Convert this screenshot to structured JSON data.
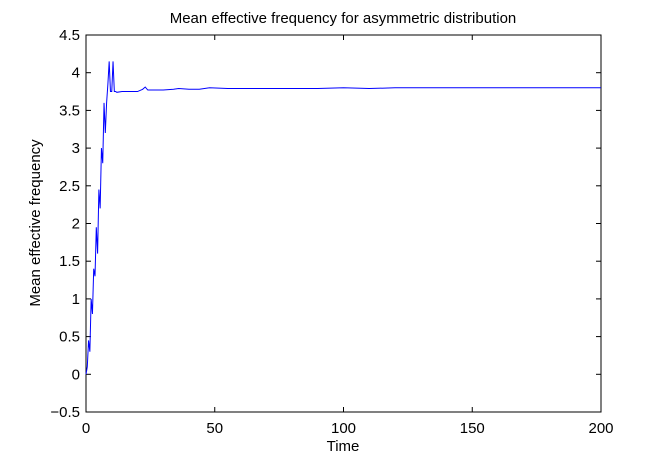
{
  "chart_data": {
    "type": "line",
    "title": "Mean effective frequency for asymmetric distribution",
    "xlabel": "Time",
    "ylabel": "Mean effective frequency",
    "xlim": [
      0,
      200
    ],
    "ylim": [
      -0.5,
      4.5
    ],
    "xticks": [
      0,
      50,
      100,
      150,
      200
    ],
    "yticks": [
      -0.5,
      0,
      0.5,
      1,
      1.5,
      2,
      2.5,
      3,
      3.5,
      4,
      4.5
    ],
    "xtick_labels": [
      "0",
      "50",
      "100",
      "150",
      "200"
    ],
    "ytick_labels": [
      "−0.5",
      "0",
      "0.5",
      "1",
      "1.5",
      "2",
      "2.5",
      "3",
      "3.5",
      "4",
      "4.5"
    ],
    "grid": false,
    "line_color": "#0000ff",
    "series": [
      {
        "x": [
          0,
          0.5,
          1,
          1.5,
          2,
          2.5,
          3,
          3.5,
          4,
          4.5,
          5,
          5.5,
          6,
          6.5,
          7,
          7.5,
          8,
          8.5,
          9,
          9.5,
          10,
          10.5,
          11,
          11.5,
          12,
          14,
          16,
          18,
          20,
          22,
          23,
          24,
          26,
          30,
          34,
          36,
          40,
          44,
          48,
          55,
          60,
          70,
          80,
          90,
          100,
          110,
          120,
          130,
          140,
          150,
          160,
          170,
          180,
          190,
          200
        ],
        "y": [
          0,
          0.1,
          0.45,
          0.3,
          1.0,
          0.8,
          1.4,
          1.3,
          1.95,
          1.6,
          2.45,
          2.2,
          3.0,
          2.8,
          3.6,
          3.2,
          3.6,
          3.85,
          4.15,
          3.75,
          3.75,
          4.15,
          3.75,
          3.75,
          3.74,
          3.75,
          3.75,
          3.75,
          3.75,
          3.78,
          3.81,
          3.77,
          3.77,
          3.77,
          3.78,
          3.79,
          3.78,
          3.78,
          3.8,
          3.79,
          3.79,
          3.79,
          3.79,
          3.79,
          3.8,
          3.79,
          3.8,
          3.8,
          3.8,
          3.8,
          3.8,
          3.8,
          3.8,
          3.8,
          3.8
        ]
      }
    ]
  }
}
